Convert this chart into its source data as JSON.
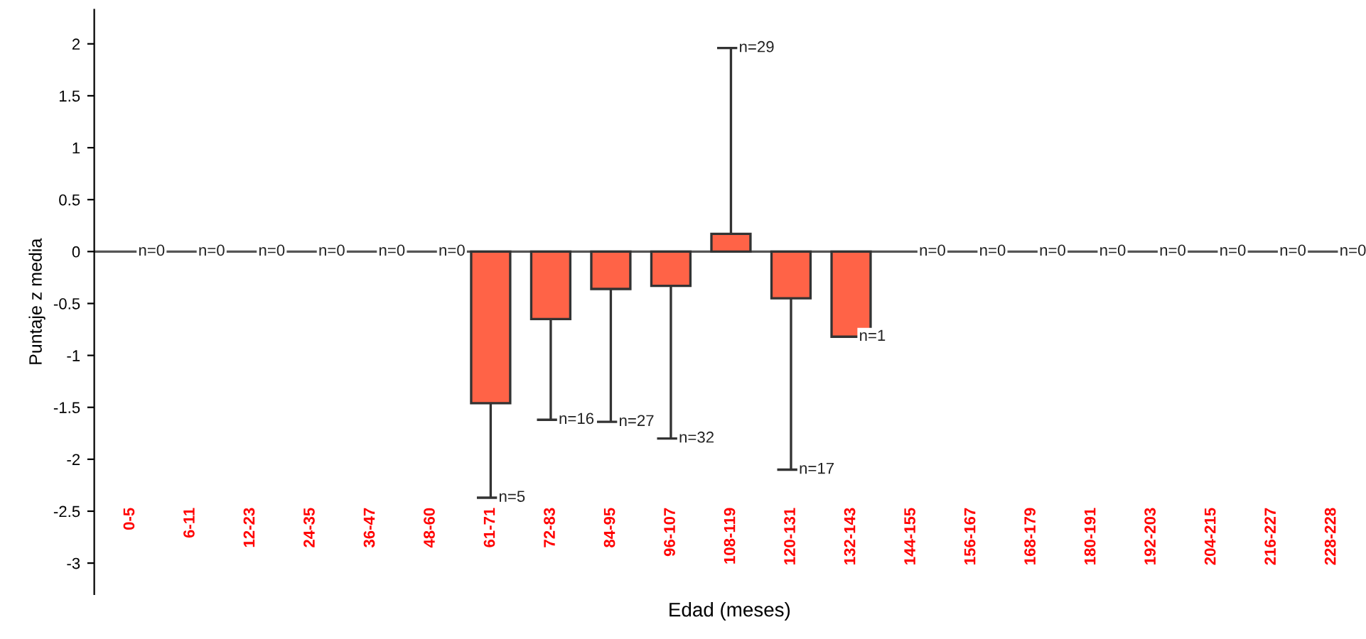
{
  "chart_data": {
    "type": "bar",
    "xlabel": "Edad (meses)",
    "ylabel": "Puntaje z media",
    "categories": [
      "0-5",
      "6-11",
      "12-23",
      "24-35",
      "36-47",
      "48-60",
      "61-71",
      "72-83",
      "84-95",
      "96-107",
      "108-119",
      "120-131",
      "132-143",
      "144-155",
      "156-167",
      "168-179",
      "180-191",
      "192-203",
      "204-215",
      "216-227",
      "228-228"
    ],
    "series": [
      {
        "color": "#ff6347",
        "values": [
          0,
          0,
          0,
          0,
          0,
          0,
          -1.46,
          -0.65,
          -0.36,
          -0.33,
          0.17,
          -0.45,
          -0.82,
          0,
          0,
          0,
          0,
          0,
          0,
          0,
          0
        ],
        "errors": [
          null,
          null,
          null,
          null,
          null,
          null,
          [
            -2.37,
            -1.46
          ],
          [
            -1.62,
            -0.65
          ],
          [
            -1.64,
            -0.36
          ],
          [
            -1.8,
            -0.33
          ],
          [
            0.17,
            1.96
          ],
          [
            -2.1,
            -0.45
          ],
          null,
          null,
          null,
          null,
          null,
          null,
          null,
          null,
          null
        ]
      }
    ],
    "ylim": [
      -3.3,
      2.33
    ],
    "yticks": [
      -3,
      -2.5,
      -2,
      -1.5,
      -1,
      -0.5,
      0,
      0.5,
      1,
      1.5,
      2
    ],
    "grid": false,
    "legend": false,
    "ref_lines": [
      {
        "axis": "y",
        "value": 0,
        "color": "#555555",
        "line_style": "solid"
      }
    ],
    "annotations": [
      {
        "text": "n=0",
        "x": "0-5",
        "y": 0
      },
      {
        "text": "n=0",
        "x": "6-11",
        "y": 0
      },
      {
        "text": "n=0",
        "x": "12-23",
        "y": 0
      },
      {
        "text": "n=0",
        "x": "24-35",
        "y": 0
      },
      {
        "text": "n=0",
        "x": "36-47",
        "y": 0
      },
      {
        "text": "n=0",
        "x": "48-60",
        "y": 0
      },
      {
        "text": "n=5",
        "x": "61-71",
        "y": -2.37
      },
      {
        "text": "n=16",
        "x": "72-83",
        "y": -1.62
      },
      {
        "text": "n=27",
        "x": "84-95",
        "y": -1.64
      },
      {
        "text": "n=32",
        "x": "96-107",
        "y": -1.8
      },
      {
        "text": "n=29",
        "x": "108-119",
        "y": 1.96
      },
      {
        "text": "n=17",
        "x": "120-131",
        "y": -2.1
      },
      {
        "text": "n=1",
        "x": "132-143",
        "y": -0.82
      },
      {
        "text": "n=0",
        "x": "144-155",
        "y": 0
      },
      {
        "text": "n=0",
        "x": "156-167",
        "y": 0
      },
      {
        "text": "n=0",
        "x": "168-179",
        "y": 0
      },
      {
        "text": "n=0",
        "x": "180-191",
        "y": 0
      },
      {
        "text": "n=0",
        "x": "192-203",
        "y": 0
      },
      {
        "text": "n=0",
        "x": "204-215",
        "y": 0
      },
      {
        "text": "n=0",
        "x": "216-227",
        "y": 0
      },
      {
        "text": "n=0",
        "x": "228-228",
        "y": 0
      }
    ]
  }
}
